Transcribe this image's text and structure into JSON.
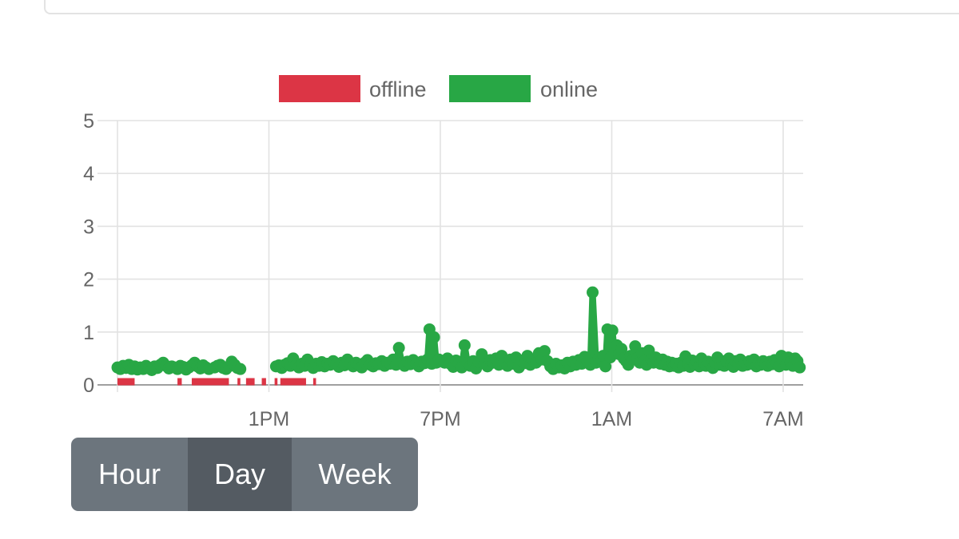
{
  "chart_data": {
    "type": "line",
    "title": "",
    "xlabel": "",
    "ylabel": "",
    "ylim": [
      0,
      5
    ],
    "yticks": [
      "0",
      "1",
      "2",
      "3",
      "4",
      "5"
    ],
    "xticks": [
      {
        "label": "1PM",
        "x": 13
      },
      {
        "label": "7PM",
        "x": 19
      },
      {
        "label": "1AM",
        "x": 25
      },
      {
        "label": "7AM",
        "x": 31
      }
    ],
    "xlim": [
      7.7,
      31.7
    ],
    "grid": true,
    "legend": {
      "position": "top"
    },
    "series": [
      {
        "name": "offline",
        "color": "#dc3545",
        "segments": [
          [
            7.7,
            8.3
          ],
          [
            9.8,
            9.95
          ],
          [
            10.3,
            11.6
          ],
          [
            11.9,
            12.0
          ],
          [
            12.2,
            12.5
          ],
          [
            12.75,
            12.9
          ],
          [
            13.2,
            13.3
          ],
          [
            13.4,
            14.3
          ],
          [
            14.55,
            14.65
          ]
        ]
      },
      {
        "name": "online",
        "color": "#28a745",
        "points": [
          [
            7.7,
            0.33
          ],
          [
            7.8,
            0.3
          ],
          [
            7.9,
            0.36
          ],
          [
            8.0,
            0.32
          ],
          [
            8.1,
            0.38
          ],
          [
            8.2,
            0.3
          ],
          [
            8.3,
            0.35
          ],
          [
            8.4,
            0.29
          ],
          [
            8.5,
            0.33
          ],
          [
            8.6,
            0.3
          ],
          [
            8.7,
            0.36
          ],
          [
            8.8,
            0.31
          ],
          [
            8.9,
            0.28
          ],
          [
            9.0,
            0.35
          ],
          [
            9.1,
            0.32
          ],
          [
            9.2,
            0.38
          ],
          [
            9.3,
            0.42
          ],
          [
            9.4,
            0.36
          ],
          [
            9.5,
            0.31
          ],
          [
            9.6,
            0.35
          ],
          [
            9.7,
            0.33
          ],
          [
            9.8,
            0.3
          ],
          [
            9.9,
            0.36
          ],
          [
            10.0,
            0.34
          ],
          [
            10.1,
            0.29
          ],
          [
            10.2,
            0.33
          ],
          [
            10.3,
            0.37
          ],
          [
            10.4,
            0.42
          ],
          [
            10.5,
            0.35
          ],
          [
            10.6,
            0.31
          ],
          [
            10.7,
            0.37
          ],
          [
            10.8,
            0.33
          ],
          [
            10.9,
            0.3
          ],
          [
            11.1,
            0.33
          ],
          [
            11.2,
            0.36
          ],
          [
            11.3,
            0.38
          ],
          [
            11.4,
            0.32
          ],
          [
            11.5,
            0.3
          ],
          [
            11.6,
            0.35
          ],
          [
            11.7,
            0.44
          ],
          [
            11.8,
            0.38
          ],
          [
            11.9,
            0.32
          ],
          [
            12.0,
            0.3
          ],
          [
            13.25,
            0.35
          ],
          [
            13.35,
            0.37
          ],
          [
            13.45,
            0.32
          ],
          [
            13.55,
            0.38
          ],
          [
            13.65,
            0.41
          ],
          [
            13.75,
            0.36
          ],
          [
            13.85,
            0.5
          ],
          [
            13.95,
            0.38
          ],
          [
            14.05,
            0.33
          ],
          [
            14.15,
            0.4
          ],
          [
            14.25,
            0.36
          ],
          [
            14.35,
            0.48
          ],
          [
            14.45,
            0.38
          ],
          [
            14.55,
            0.32
          ],
          [
            14.65,
            0.4
          ],
          [
            14.75,
            0.36
          ],
          [
            14.85,
            0.43
          ],
          [
            14.95,
            0.35
          ],
          [
            15.05,
            0.4
          ],
          [
            15.15,
            0.38
          ],
          [
            15.25,
            0.45
          ],
          [
            15.35,
            0.39
          ],
          [
            15.45,
            0.34
          ],
          [
            15.55,
            0.42
          ],
          [
            15.65,
            0.37
          ],
          [
            15.75,
            0.48
          ],
          [
            15.85,
            0.4
          ],
          [
            15.95,
            0.35
          ],
          [
            16.05,
            0.42
          ],
          [
            16.15,
            0.38
          ],
          [
            16.25,
            0.33
          ],
          [
            16.35,
            0.42
          ],
          [
            16.45,
            0.47
          ],
          [
            16.55,
            0.38
          ],
          [
            16.65,
            0.35
          ],
          [
            16.75,
            0.41
          ],
          [
            16.85,
            0.39
          ],
          [
            16.95,
            0.45
          ],
          [
            17.05,
            0.36
          ],
          [
            17.15,
            0.42
          ],
          [
            17.25,
            0.4
          ],
          [
            17.35,
            0.48
          ],
          [
            17.45,
            0.38
          ],
          [
            17.55,
            0.7
          ],
          [
            17.65,
            0.42
          ],
          [
            17.75,
            0.36
          ],
          [
            17.85,
            0.44
          ],
          [
            17.95,
            0.39
          ],
          [
            18.05,
            0.47
          ],
          [
            18.15,
            0.4
          ],
          [
            18.25,
            0.35
          ],
          [
            18.35,
            0.44
          ],
          [
            18.45,
            0.41
          ],
          [
            18.55,
            0.48
          ],
          [
            18.62,
            1.05
          ],
          [
            18.7,
            0.4
          ],
          [
            18.78,
            0.9
          ],
          [
            18.86,
            0.42
          ],
          [
            18.95,
            0.48
          ],
          [
            19.05,
            0.45
          ],
          [
            19.15,
            0.42
          ],
          [
            19.25,
            0.5
          ],
          [
            19.35,
            0.4
          ],
          [
            19.45,
            0.34
          ],
          [
            19.55,
            0.46
          ],
          [
            19.65,
            0.41
          ],
          [
            19.75,
            0.33
          ],
          [
            19.85,
            0.75
          ],
          [
            19.95,
            0.42
          ],
          [
            20.05,
            0.36
          ],
          [
            20.15,
            0.45
          ],
          [
            20.25,
            0.31
          ],
          [
            20.35,
            0.43
          ],
          [
            20.45,
            0.58
          ],
          [
            20.55,
            0.4
          ],
          [
            20.65,
            0.35
          ],
          [
            20.75,
            0.47
          ],
          [
            20.85,
            0.42
          ],
          [
            20.95,
            0.5
          ],
          [
            21.05,
            0.38
          ],
          [
            21.15,
            0.55
          ],
          [
            21.25,
            0.44
          ],
          [
            21.35,
            0.36
          ],
          [
            21.45,
            0.48
          ],
          [
            21.55,
            0.4
          ],
          [
            21.65,
            0.52
          ],
          [
            21.75,
            0.33
          ],
          [
            21.85,
            0.46
          ],
          [
            21.95,
            0.41
          ],
          [
            22.05,
            0.55
          ],
          [
            22.15,
            0.38
          ],
          [
            22.25,
            0.47
          ],
          [
            22.35,
            0.42
          ],
          [
            22.45,
            0.6
          ],
          [
            22.55,
            0.48
          ],
          [
            22.65,
            0.64
          ],
          [
            22.75,
            0.45
          ],
          [
            22.85,
            0.35
          ],
          [
            22.95,
            0.3
          ],
          [
            23.05,
            0.4
          ],
          [
            23.15,
            0.33
          ],
          [
            23.25,
            0.37
          ],
          [
            23.35,
            0.31
          ],
          [
            23.45,
            0.42
          ],
          [
            23.55,
            0.35
          ],
          [
            23.65,
            0.44
          ],
          [
            23.75,
            0.38
          ],
          [
            23.85,
            0.47
          ],
          [
            23.95,
            0.4
          ],
          [
            24.05,
            0.53
          ],
          [
            24.15,
            0.45
          ],
          [
            24.25,
            0.38
          ],
          [
            24.33,
            1.75
          ],
          [
            24.45,
            0.42
          ],
          [
            24.55,
            0.5
          ],
          [
            24.65,
            0.47
          ],
          [
            24.7,
            0.55
          ],
          [
            24.78,
            0.35
          ],
          [
            24.85,
            1.05
          ],
          [
            24.95,
            0.52
          ],
          [
            25.02,
            1.03
          ],
          [
            25.1,
            0.62
          ],
          [
            25.18,
            0.75
          ],
          [
            25.26,
            0.58
          ],
          [
            25.34,
            0.68
          ],
          [
            25.42,
            0.5
          ],
          [
            25.5,
            0.45
          ],
          [
            25.58,
            0.38
          ],
          [
            25.66,
            0.55
          ],
          [
            25.74,
            0.48
          ],
          [
            25.82,
            0.73
          ],
          [
            25.9,
            0.5
          ],
          [
            25.98,
            0.42
          ],
          [
            26.06,
            0.6
          ],
          [
            26.14,
            0.45
          ],
          [
            26.22,
            0.38
          ],
          [
            26.3,
            0.65
          ],
          [
            26.38,
            0.48
          ],
          [
            26.46,
            0.42
          ],
          [
            26.54,
            0.52
          ],
          [
            26.62,
            0.45
          ],
          [
            26.7,
            0.4
          ],
          [
            26.78,
            0.48
          ],
          [
            26.86,
            0.38
          ],
          [
            26.94,
            0.44
          ],
          [
            27.02,
            0.35
          ],
          [
            27.1,
            0.42
          ],
          [
            27.18,
            0.36
          ],
          [
            27.26,
            0.4
          ],
          [
            27.34,
            0.33
          ],
          [
            27.42,
            0.42
          ],
          [
            27.5,
            0.36
          ],
          [
            27.58,
            0.54
          ],
          [
            27.66,
            0.4
          ],
          [
            27.74,
            0.34
          ],
          [
            27.82,
            0.46
          ],
          [
            27.9,
            0.38
          ],
          [
            27.98,
            0.44
          ],
          [
            28.06,
            0.35
          ],
          [
            28.14,
            0.5
          ],
          [
            28.22,
            0.42
          ],
          [
            28.3,
            0.36
          ],
          [
            28.38,
            0.44
          ],
          [
            28.46,
            0.38
          ],
          [
            28.54,
            0.32
          ],
          [
            28.62,
            0.42
          ],
          [
            28.7,
            0.52
          ],
          [
            28.78,
            0.38
          ],
          [
            28.86,
            0.45
          ],
          [
            28.94,
            0.36
          ],
          [
            29.02,
            0.44
          ],
          [
            29.1,
            0.5
          ],
          [
            29.18,
            0.38
          ],
          [
            29.26,
            0.34
          ],
          [
            29.34,
            0.45
          ],
          [
            29.42,
            0.4
          ],
          [
            29.5,
            0.48
          ],
          [
            29.58,
            0.36
          ],
          [
            29.66,
            0.42
          ],
          [
            29.74,
            0.38
          ],
          [
            29.82,
            0.45
          ],
          [
            29.9,
            0.4
          ],
          [
            29.98,
            0.48
          ],
          [
            30.06,
            0.35
          ],
          [
            30.14,
            0.42
          ],
          [
            30.22,
            0.38
          ],
          [
            30.3,
            0.45
          ],
          [
            30.38,
            0.4
          ],
          [
            30.46,
            0.36
          ],
          [
            30.54,
            0.44
          ],
          [
            30.62,
            0.39
          ],
          [
            30.7,
            0.47
          ],
          [
            30.78,
            0.41
          ],
          [
            30.86,
            0.35
          ],
          [
            30.94,
            0.55
          ],
          [
            31.02,
            0.48
          ],
          [
            31.1,
            0.38
          ],
          [
            31.18,
            0.52
          ],
          [
            31.26,
            0.43
          ],
          [
            31.34,
            0.36
          ],
          [
            31.42,
            0.5
          ],
          [
            31.5,
            0.45
          ],
          [
            31.58,
            0.33
          ]
        ]
      }
    ]
  },
  "controls": {
    "buttons": [
      {
        "label": "Hour",
        "active": false
      },
      {
        "label": "Day",
        "active": true
      },
      {
        "label": "Week",
        "active": false
      }
    ]
  }
}
